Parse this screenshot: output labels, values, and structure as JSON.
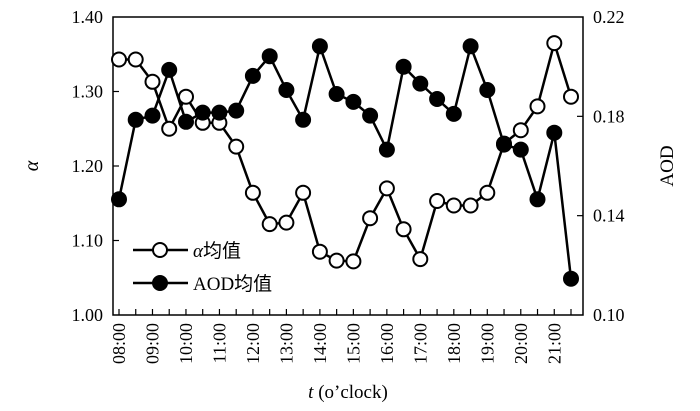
{
  "chart_data": {
    "type": "line",
    "xlabel_italic": "t",
    "xlabel_rest": " (o’clock)",
    "ylabel_left": "α",
    "ylabel_right": "AOD",
    "ylim_left": [
      1.0,
      1.4
    ],
    "ylim_right": [
      0.1,
      0.22
    ],
    "yticks_left": [
      "1.00",
      "1.10",
      "1.20",
      "1.30",
      "1.40"
    ],
    "yticks_right": [
      "0.10",
      "0.14",
      "0.18",
      "0.22"
    ],
    "x_tick_labels": [
      "08:00",
      "09:00",
      "10:00",
      "11:00",
      "12:00",
      "13:00",
      "14:00",
      "15:00",
      "16:00",
      "17:00",
      "18:00",
      "19:00",
      "20:00",
      "21:00"
    ],
    "x": [
      "08:00",
      "08:30",
      "09:00",
      "09:30",
      "10:00",
      "10:30",
      "11:00",
      "11:30",
      "12:00",
      "12:30",
      "13:00",
      "13:30",
      "14:00",
      "14:30",
      "15:00",
      "15:30",
      "16:00",
      "16:30",
      "17:00",
      "17:30",
      "18:00",
      "18:30",
      "19:00",
      "19:30",
      "20:00",
      "20:30",
      "21:00",
      "21:30"
    ],
    "legend_position": "lower-left",
    "series": [
      {
        "name": "α均值",
        "name_italic": "α",
        "name_rest": "均值",
        "axis": "left",
        "marker": "open-circle",
        "values": [
          1.343,
          1.343,
          1.313,
          1.25,
          1.293,
          1.258,
          1.258,
          1.226,
          1.164,
          1.122,
          1.124,
          1.164,
          1.085,
          1.073,
          1.072,
          1.13,
          1.17,
          1.115,
          1.075,
          1.153,
          1.147,
          1.147,
          1.164,
          1.23,
          1.248,
          1.28,
          1.365,
          1.293
        ]
      },
      {
        "name": "AOD均值",
        "name_italic": "",
        "name_rest": "AOD均值",
        "axis": "right",
        "marker": "filled-circle",
        "values": [
          0.1466,
          0.1786,
          0.1803,
          0.1987,
          0.1778,
          0.1815,
          0.1815,
          0.1823,
          0.1963,
          0.2042,
          0.1906,
          0.1786,
          0.2082,
          0.189,
          0.1858,
          0.1803,
          0.1666,
          0.2,
          0.1932,
          0.187,
          0.181,
          0.2082,
          0.1906,
          0.1686,
          0.1666,
          0.1466,
          0.1734,
          0.1146
        ]
      }
    ]
  }
}
